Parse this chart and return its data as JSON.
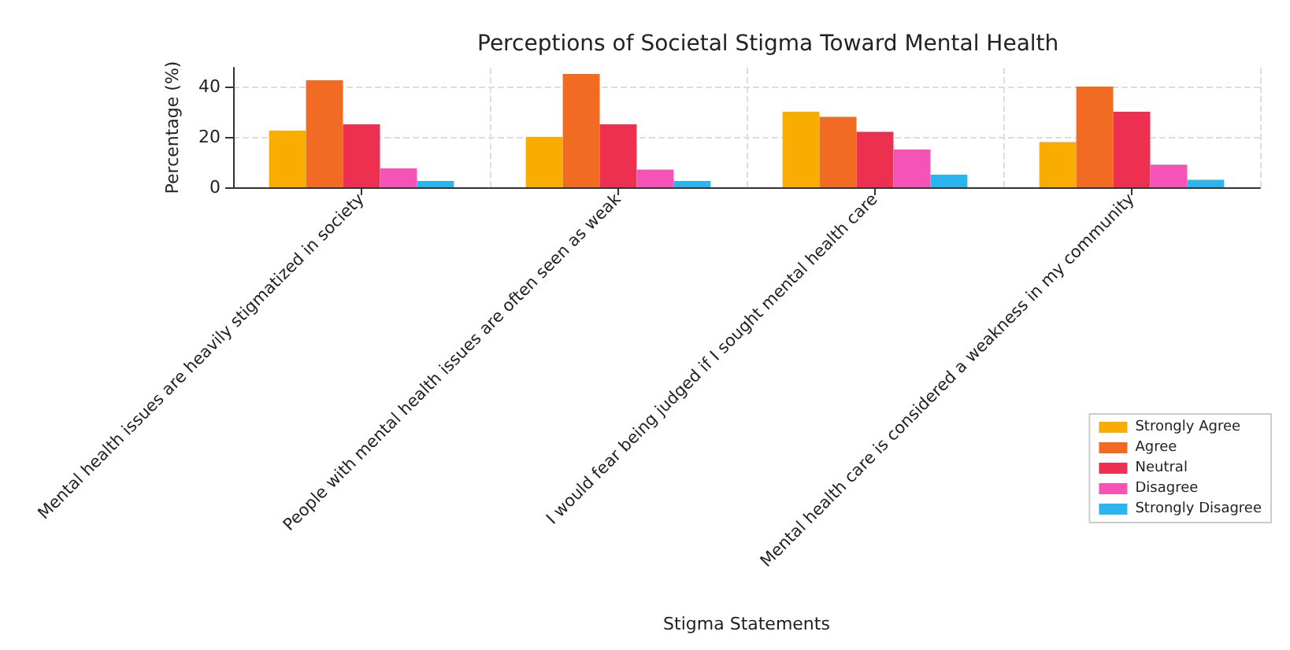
{
  "chart_data": {
    "type": "bar",
    "title": "Perceptions of Societal Stigma Toward Mental Health",
    "xlabel": "Stigma Statements",
    "ylabel": "Percentage (%)",
    "categories": [
      "Mental health issues are heavily stigmatized in society",
      "People with mental health issues are often seen as weak",
      "I would fear being judged if I sought mental health care",
      "Mental health care is considered a weakness in my community"
    ],
    "series": [
      {
        "name": "Strongly Agree",
        "color": "#f9ad00",
        "values": [
          22.5,
          20,
          30,
          18
        ]
      },
      {
        "name": "Agree",
        "color": "#f26b22",
        "values": [
          42.5,
          45,
          28,
          40
        ]
      },
      {
        "name": "Neutral",
        "color": "#ee3050",
        "values": [
          25,
          25,
          22,
          30
        ]
      },
      {
        "name": "Disagree",
        "color": "#f553b5",
        "values": [
          7.5,
          7,
          15,
          9
        ]
      },
      {
        "name": "Strongly Disagree",
        "color": "#2bb5ee",
        "values": [
          2.5,
          2.5,
          5,
          3
        ]
      }
    ],
    "ylim": [
      0,
      47.5
    ],
    "yticks": [
      0,
      20,
      40
    ],
    "grid": true,
    "legend": "bottom right"
  }
}
